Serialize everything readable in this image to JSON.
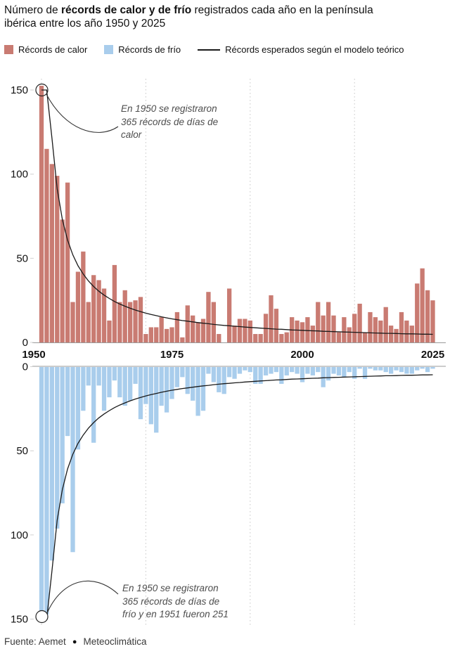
{
  "title": {
    "prefix": "Número de ",
    "bold": "récords de calor y de frío",
    "suffix": " registrados cada año en la península ibérica entre los año 1950 y 2025"
  },
  "legend": {
    "items": [
      {
        "label": "Récords de calor",
        "color": "#c97b72",
        "type": "swatch"
      },
      {
        "label": "Récords de frío",
        "color": "#a9cdec",
        "type": "swatch"
      },
      {
        "label": "Récords esperados según el modelo teórico",
        "color": "#1a1a1a",
        "type": "line"
      }
    ]
  },
  "chart_data": [
    {
      "type": "bar",
      "name": "records-de-calor",
      "series_label": "Récords de calor",
      "bar_color": "#c97b72",
      "orientation": "up",
      "x": {
        "start": 1950,
        "end": 2025,
        "ticks": [
          1950,
          1975,
          2000,
          2025
        ],
        "grid_years": [
          1950,
          1970,
          1990,
          2010
        ]
      },
      "y": {
        "max": 150,
        "ticks": [
          0,
          50,
          100,
          150
        ]
      },
      "values": [
        150,
        115,
        106,
        99,
        73,
        95,
        24,
        42,
        54,
        24,
        40,
        37,
        32,
        13,
        46,
        24,
        31,
        24,
        25,
        27,
        5,
        9,
        9,
        15,
        8,
        9,
        18,
        3,
        22,
        16,
        12,
        14,
        30,
        24,
        5,
        0,
        32,
        10,
        14,
        14,
        13,
        5,
        5,
        17,
        28,
        20,
        5,
        6,
        15,
        13,
        12,
        15,
        10,
        24,
        16,
        24,
        16,
        6,
        15,
        9,
        17,
        23,
        6,
        18,
        15,
        13,
        21,
        10,
        8,
        18,
        13,
        10,
        35,
        44,
        31,
        25
      ],
      "clipped": {
        "1950": 365
      },
      "model": {
        "label": "Récords esperados según el modelo teórico",
        "values": [
          365,
          182.5,
          121.7,
          91.3,
          73,
          60.8,
          52.1,
          45.6,
          40.6,
          36.5,
          33.2,
          30.4,
          28.1,
          26.1,
          24.3,
          22.8,
          21.5,
          20.3,
          19.2,
          18.3,
          17.4,
          16.6,
          15.9,
          15.2,
          14.6,
          14,
          13.5,
          13,
          12.6,
          12.2,
          11.8,
          11.4,
          11.1,
          10.7,
          10.4,
          10.1,
          9.9,
          9.6,
          9.4,
          9.1,
          8.9,
          8.7,
          8.5,
          8.3,
          8.1,
          7.9,
          7.8,
          7.6,
          7.4,
          7.3,
          7.2,
          7,
          6.9,
          6.8,
          6.6,
          6.5,
          6.4,
          6.3,
          6.2,
          6.1,
          6,
          5.9,
          5.8,
          5.7,
          5.6,
          5.5,
          5.4,
          5.4,
          5.3,
          5.2,
          5.1,
          5.1,
          5,
          4.9,
          4.9,
          4.8
        ]
      },
      "annotation": {
        "lines": [
          "En 1950 se registraron",
          "365 récords de días de",
          "calor"
        ],
        "circle": {
          "year": 1950,
          "value": 150
        }
      }
    },
    {
      "type": "bar",
      "name": "records-de-frio",
      "series_label": "Récords de frío",
      "bar_color": "#a9cdec",
      "orientation": "down",
      "x": {
        "start": 1950,
        "end": 2025,
        "ticks": [],
        "grid_years": [
          1950,
          1970,
          1990,
          2010
        ]
      },
      "y": {
        "max": 150,
        "ticks": [
          0,
          50,
          100,
          150
        ]
      },
      "values": [
        150,
        147,
        115,
        96,
        81,
        41,
        110,
        49,
        26,
        11,
        45,
        11,
        26,
        18,
        8,
        18,
        23,
        20,
        10,
        31,
        22,
        34,
        39,
        23,
        27,
        19,
        12,
        6,
        16,
        20,
        29,
        26,
        4,
        9,
        15,
        16,
        6,
        7,
        4,
        2,
        3,
        10,
        10,
        5,
        4,
        3,
        10,
        5,
        3,
        4,
        9,
        4,
        5,
        3,
        12,
        8,
        4,
        5,
        6,
        3,
        7,
        1,
        7,
        1,
        2,
        2,
        3,
        4,
        2,
        3,
        4,
        4,
        2,
        1,
        3,
        1
      ],
      "clipped": {
        "1950": 365,
        "1951": 251
      },
      "model": {
        "label": "Récords esperados según el modelo teórico",
        "values": [
          365,
          182.5,
          121.7,
          91.3,
          73,
          60.8,
          52.1,
          45.6,
          40.6,
          36.5,
          33.2,
          30.4,
          28.1,
          26.1,
          24.3,
          22.8,
          21.5,
          20.3,
          19.2,
          18.3,
          17.4,
          16.6,
          15.9,
          15.2,
          14.6,
          14,
          13.5,
          13,
          12.6,
          12.2,
          11.8,
          11.4,
          11.1,
          10.7,
          10.4,
          10.1,
          9.9,
          9.6,
          9.4,
          9.1,
          8.9,
          8.7,
          8.5,
          8.3,
          8.1,
          7.9,
          7.8,
          7.6,
          7.4,
          7.3,
          7.2,
          7,
          6.9,
          6.8,
          6.6,
          6.5,
          6.4,
          6.3,
          6.2,
          6.1,
          6,
          5.9,
          5.8,
          5.7,
          5.6,
          5.5,
          5.4,
          5.4,
          5.3,
          5.2,
          5.1,
          5.1,
          5,
          4.9,
          4.9,
          4.8
        ]
      },
      "annotation": {
        "lines": [
          "En 1950 se registraron",
          "365 récords de días de",
          "frío y en 1951 fueron 251"
        ],
        "circle": {
          "year": 1950,
          "value": 150
        }
      }
    }
  ],
  "footer": {
    "source": "Fuente: Aemet",
    "separator": "●",
    "publisher": "Meteoclimática"
  }
}
